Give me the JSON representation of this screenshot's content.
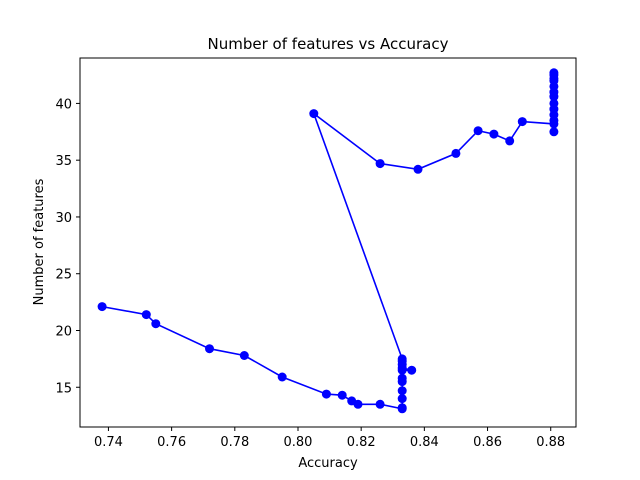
{
  "chart_data": {
    "type": "line",
    "title": "Number of features vs Accuracy",
    "xlabel": "Accuracy",
    "ylabel": "Number of features",
    "xlim": [
      0.731,
      0.888
    ],
    "ylim": [
      11.5,
      44.0
    ],
    "xticks": [
      0.74,
      0.76,
      0.78,
      0.8,
      0.82,
      0.84,
      0.86,
      0.88
    ],
    "xtick_labels": [
      "0.74",
      "0.76",
      "0.78",
      "0.80",
      "0.82",
      "0.84",
      "0.86",
      "0.88"
    ],
    "yticks": [
      15,
      20,
      25,
      30,
      35,
      40
    ],
    "ytick_labels": [
      "15",
      "20",
      "25",
      "30",
      "35",
      "40"
    ],
    "grid": false,
    "color": "#0000ff",
    "marker": "circle",
    "series": [
      {
        "x": [
          0.738,
          0.752,
          0.755,
          0.772,
          0.783,
          0.795,
          0.809,
          0.814,
          0.817,
          0.819,
          0.826,
          0.833,
          0.833,
          0.833,
          0.833,
          0.833,
          0.833,
          0.833,
          0.836,
          0.833,
          0.833,
          0.833,
          0.833,
          0.805,
          0.826,
          0.838,
          0.85,
          0.857,
          0.862,
          0.867,
          0.871,
          0.881,
          0.881,
          0.881,
          0.881,
          0.881,
          0.881,
          0.881,
          0.881,
          0.881,
          0.881,
          0.881,
          0.881,
          0.881
        ],
        "y": [
          22.1,
          21.4,
          20.6,
          18.4,
          17.8,
          15.9,
          14.4,
          14.3,
          13.8,
          13.5,
          13.5,
          13.1,
          13.2,
          14.0,
          14.7,
          15.5,
          15.8,
          16.5,
          16.5,
          16.7,
          17.0,
          17.3,
          17.5,
          39.1,
          34.7,
          34.2,
          35.6,
          37.6,
          37.3,
          36.7,
          38.4,
          38.2,
          37.5,
          38.5,
          39.0,
          39.5,
          40.0,
          40.6,
          41.0,
          41.5,
          42.0,
          42.2,
          42.5,
          42.7
        ]
      }
    ]
  }
}
